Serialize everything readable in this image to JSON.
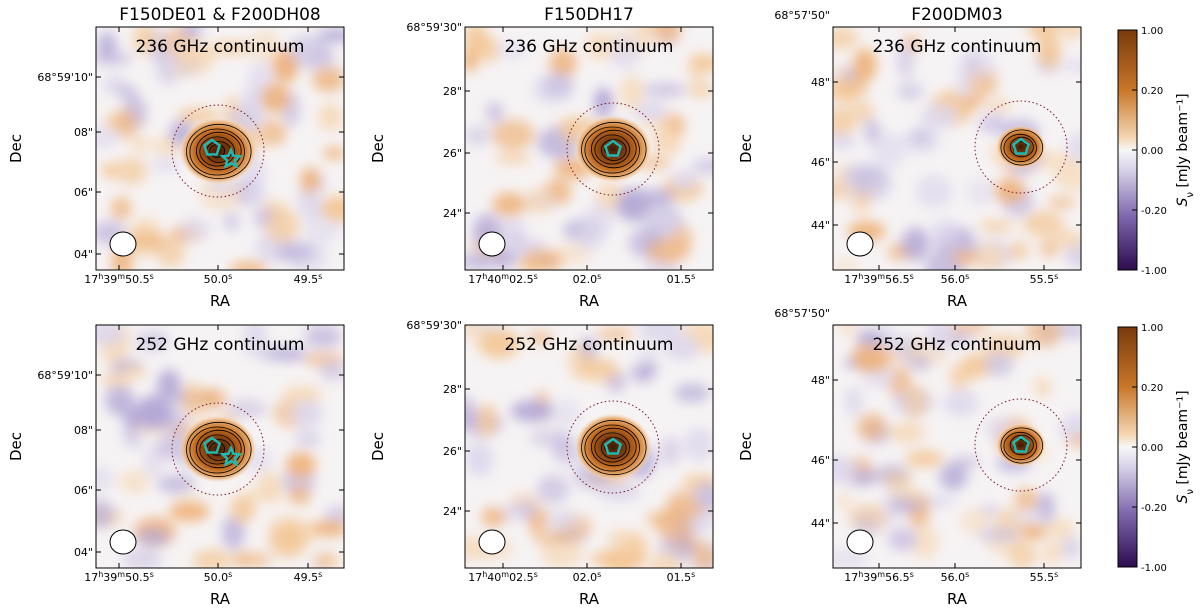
{
  "colors": {
    "positive": "#b25a1a",
    "negative": "#4a2c7a",
    "marker": "#1fb8b3",
    "circle": "#7a1a2a"
  },
  "figure": {
    "columns": [
      {
        "title": "F150DE01 & F200DH08",
        "ra_ticks": [
          "17h39m50.5s",
          "50.0s",
          "49.5s"
        ],
        "dec_ticks": [
          "68°59'10\"",
          "08\"",
          "06\"",
          "04\""
        ]
      },
      {
        "title": "F150DH17",
        "ra_ticks": [
          "17h40m02.5s",
          "02.0s",
          "01.5s"
        ],
        "dec_ticks": [
          "68°59'30\"",
          "28\"",
          "26\"",
          "24\""
        ]
      },
      {
        "title": "F200DM03",
        "ra_ticks": [
          "17h39m56.5s",
          "56.0s",
          "55.5s"
        ],
        "dec_ticks": [
          "68°57'50\"",
          "48\"",
          "46\"",
          "44\""
        ]
      }
    ],
    "rows": [
      {
        "label": "236 GHz continuum"
      },
      {
        "label": "252 GHz continuum"
      }
    ],
    "xlabel": "RA",
    "ylabel": "Dec",
    "colorbar": {
      "label": "S_ν [mJy beam⁻¹]",
      "ticks": [
        "1.00",
        "0.20",
        "0.00",
        "-0.20",
        "-1.00"
      ]
    },
    "markers": [
      {
        "panel": "row1-col1",
        "symbols": [
          "pentagon",
          "star"
        ]
      },
      {
        "panel": "row1-col2",
        "symbols": [
          "pentagon"
        ]
      },
      {
        "panel": "row1-col3",
        "symbols": [
          "pentagon"
        ]
      },
      {
        "panel": "row2-col1",
        "symbols": [
          "pentagon",
          "star"
        ]
      },
      {
        "panel": "row2-col2",
        "symbols": [
          "pentagon"
        ]
      },
      {
        "panel": "row2-col3",
        "symbols": [
          "pentagon"
        ]
      }
    ]
  }
}
